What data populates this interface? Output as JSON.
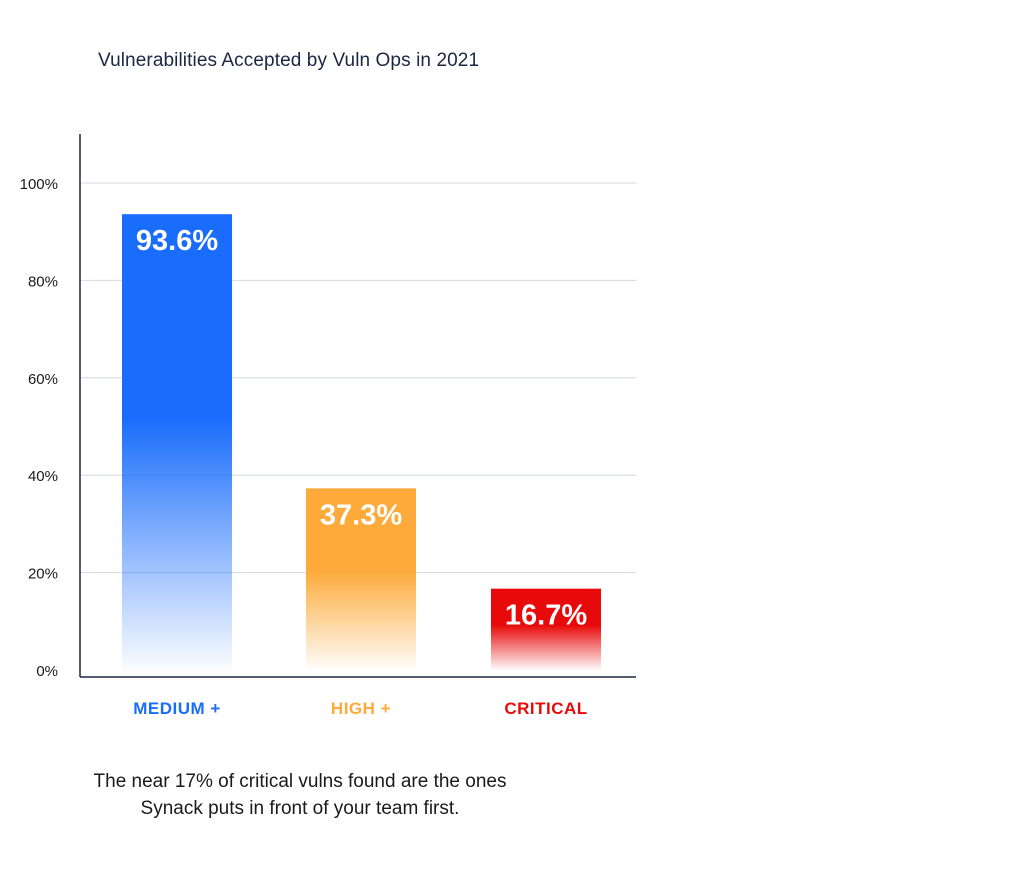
{
  "title": "Vulnerabilities Accepted by Vuln Ops in 2021",
  "caption": {
    "line1": "The near 17% of critical vulns found are the ones",
    "line2": "Synack puts in front of your team first."
  },
  "chart_data": {
    "type": "bar",
    "title": "Vulnerabilities Accepted by Vuln Ops in 2021",
    "xlabel": "",
    "ylabel": "",
    "categories": [
      "MEDIUM +",
      "HIGH +",
      "CRITICAL"
    ],
    "values": [
      93.6,
      37.3,
      16.7
    ],
    "value_labels": [
      "93.6%",
      "37.3%",
      "16.7%"
    ],
    "colors": [
      "#1a6dfc",
      "#fdaa3a",
      "#e80a0a"
    ],
    "ylim": [
      0,
      110
    ],
    "yticks": [
      0,
      20,
      40,
      60,
      80,
      100
    ],
    "ytick_labels": [
      "0%",
      "20%",
      "40%",
      "60%",
      "80%",
      "100%"
    ],
    "grid": true,
    "legend": "none"
  }
}
